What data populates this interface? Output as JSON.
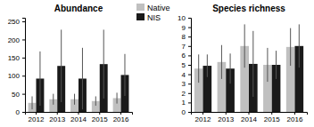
{
  "chart_data": [
    {
      "type": "bar",
      "title": "Abundance",
      "categories": [
        "2012",
        "2013",
        "2014",
        "2015",
        "2016"
      ],
      "series": [
        {
          "name": "Native",
          "color": "#c0c0c0",
          "values": [
            25,
            35,
            35,
            30,
            38
          ],
          "errors": [
            18,
            15,
            15,
            13,
            15
          ]
        },
        {
          "name": "NIS",
          "color": "#1a1a1a",
          "values": [
            92,
            127,
            92,
            132,
            102
          ],
          "errors": [
            75,
            100,
            85,
            95,
            58
          ]
        }
      ],
      "ylim": [
        0,
        260
      ],
      "yticks": [
        0,
        50,
        100,
        150,
        200,
        250
      ],
      "grid": false
    },
    {
      "type": "bar",
      "title": "Species richness",
      "categories": [
        "2012",
        "2013",
        "2014",
        "2015",
        "2016"
      ],
      "series": [
        {
          "name": "Native",
          "color": "#c0c0c0",
          "values": [
            4.6,
            5.3,
            7.0,
            5.0,
            6.9
          ],
          "errors": [
            1.5,
            1.8,
            2.3,
            1.8,
            2.0
          ]
        },
        {
          "name": "NIS",
          "color": "#1a1a1a",
          "values": [
            4.9,
            4.6,
            5.1,
            5.0,
            7.0
          ],
          "errors": [
            1.2,
            1.6,
            3.5,
            1.5,
            2.3
          ]
        }
      ],
      "ylim": [
        0,
        10
      ],
      "yticks": [
        0,
        1,
        2,
        3,
        4,
        5,
        6,
        7,
        8,
        9,
        10
      ],
      "grid": false
    }
  ]
}
